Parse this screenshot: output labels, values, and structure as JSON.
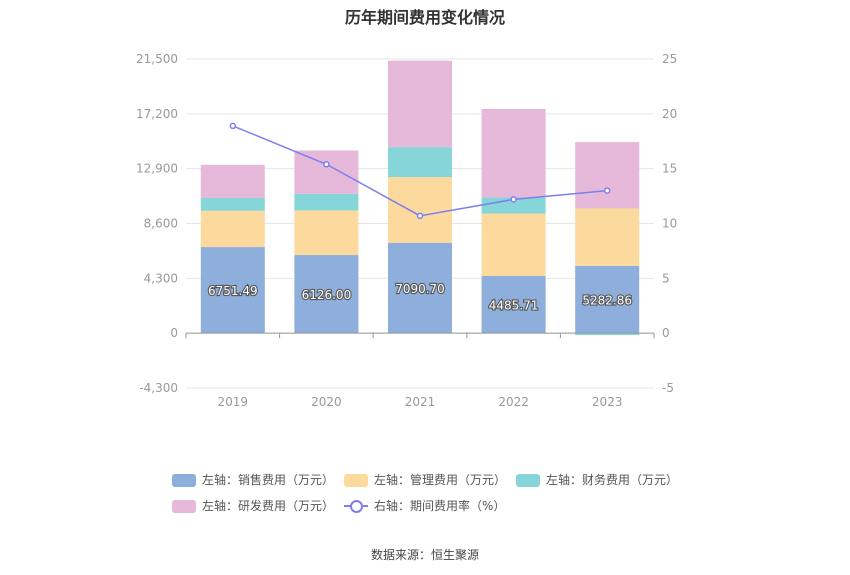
{
  "title": "历年期间费用变化情况",
  "source": "数据来源：恒生聚源",
  "colors": {
    "sales": "#8eaedb",
    "admin": "#fcd99c",
    "finance": "#86d5d9",
    "rnd": "#e6b9da",
    "rate": "#7b7ff0"
  },
  "chart_data": {
    "type": "bar",
    "stacked": true,
    "categories": [
      "2019",
      "2020",
      "2021",
      "2022",
      "2023"
    ],
    "left_axis": {
      "ticks": [
        -4300,
        0,
        4300,
        8600,
        12900,
        17200,
        21500
      ],
      "tick_labels": [
        "-4,300",
        "0",
        "4,300",
        "8,600",
        "12,900",
        "17,200",
        "21,500"
      ],
      "ylim": [
        -4300,
        21500
      ]
    },
    "right_axis": {
      "ticks": [
        -5,
        0,
        5,
        10,
        15,
        20,
        25
      ],
      "tick_labels": [
        "-5",
        "0",
        "5",
        "10",
        "15",
        "20",
        "25"
      ],
      "ylim": [
        -5,
        25
      ]
    },
    "series": [
      {
        "name": "左轴：销售费用（万元）",
        "key": "sales",
        "axis": "left",
        "values": [
          6751.49,
          6126.0,
          7090.7,
          4485.71,
          5282.86
        ],
        "labels": [
          "6751.49",
          "6126.00",
          "7090.70",
          "4485.71",
          "5282.86"
        ]
      },
      {
        "name": "左轴：管理费用（万元）",
        "key": "admin",
        "axis": "left",
        "values": [
          2850,
          3500,
          5150,
          4900,
          4500
        ]
      },
      {
        "name": "左轴：财务费用（万元）",
        "key": "finance",
        "axis": "left",
        "values": [
          1000,
          1300,
          2350,
          1250,
          -150
        ]
      },
      {
        "name": "左轴：研发费用（万元）",
        "key": "rnd",
        "axis": "left",
        "values": [
          2600,
          3400,
          6780,
          6950,
          5200
        ]
      },
      {
        "name": "右轴：期间费用率（%）",
        "key": "rate",
        "axis": "right",
        "type": "line",
        "values": [
          18.9,
          15.4,
          10.7,
          12.2,
          13.0
        ]
      }
    ],
    "grid": true,
    "legend_position": "bottom"
  }
}
